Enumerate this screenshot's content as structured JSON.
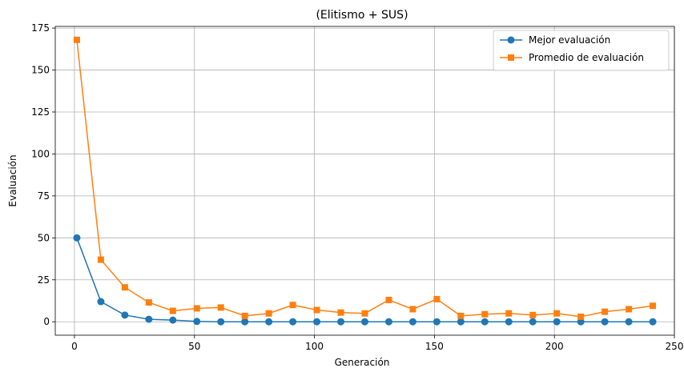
{
  "chart_data": {
    "type": "line",
    "title": "(Elitismo + SUS)",
    "xlabel": "Generación",
    "ylabel": "Evaluación",
    "xlim": [
      -8,
      250
    ],
    "ylim": [
      -8,
      176
    ],
    "xticks": [
      0,
      50,
      100,
      150,
      200,
      250
    ],
    "yticks": [
      0,
      25,
      50,
      75,
      100,
      125,
      150,
      175
    ],
    "grid": true,
    "legend_position": "top-right",
    "x": [
      1,
      11,
      21,
      31,
      41,
      51,
      61,
      71,
      81,
      91,
      101,
      111,
      121,
      131,
      141,
      151,
      161,
      171,
      181,
      191,
      201,
      211,
      221,
      231,
      241
    ],
    "series": [
      {
        "name": "Mejor evaluación",
        "color": "#1f77b4",
        "marker": "circle",
        "values": [
          50,
          12,
          4,
          1.5,
          1,
          0.2,
          0,
          0,
          0,
          0,
          0,
          0,
          0,
          0,
          0,
          0,
          0,
          0,
          0,
          0,
          0,
          0,
          0,
          0,
          0
        ]
      },
      {
        "name": "Promedio de evaluación",
        "color": "#ff7f0e",
        "marker": "square",
        "values": [
          168,
          37,
          20.5,
          11.5,
          6.5,
          8,
          8.5,
          3.5,
          5,
          10,
          7,
          5.5,
          5,
          13,
          7.5,
          13.5,
          3.5,
          4.5,
          5,
          4,
          5,
          3,
          6,
          7.5,
          9.5
        ]
      }
    ]
  }
}
